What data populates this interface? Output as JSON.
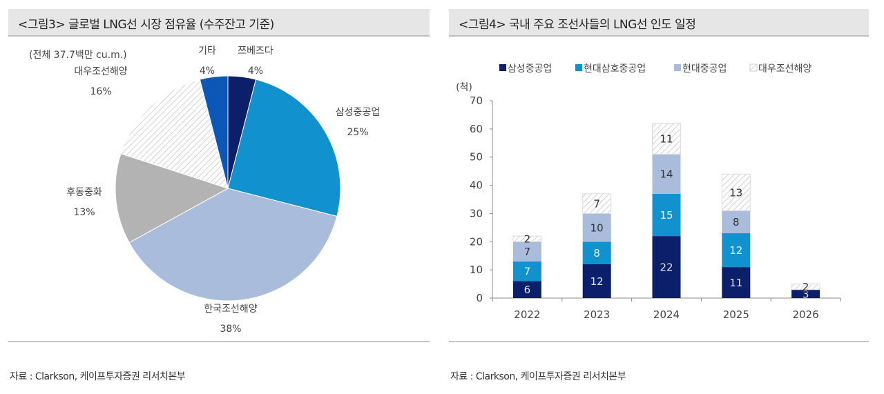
{
  "left_panel": {
    "title": "<그림3> 글로벌 LNG선 시장 점유율 (수주잔고 기준)",
    "source": "자료 : Clarkson, 케이프투자증권 리서치본부"
  },
  "right_panel": {
    "title": "<그림4> 국내 주요 조선사들의 LNG선 인도 일정",
    "source": "자료 : Clarkson, 케이프투자증권 리서치본부"
  },
  "chart_data": [
    {
      "type": "pie",
      "title": "글로벌 LNG선 시장 점유율 (수주잔고 기준)",
      "annotation": "(전체 37.7백만 cu.m.)",
      "unit": "%",
      "start_angle": "12 o'clock, clockwise",
      "slices": [
        {
          "label": "쯔베즈다",
          "value": 4,
          "display": "4%",
          "color": "#0b1f6b",
          "pattern": "solid"
        },
        {
          "label": "삼성중공업",
          "value": 25,
          "display": "25%",
          "color": "#1192cf",
          "pattern": "solid"
        },
        {
          "label": "한국조선해양",
          "value": 38,
          "display": "38%",
          "color": "#a9bcdc",
          "pattern": "solid"
        },
        {
          "label": "후동중화",
          "value": 13,
          "display": "13%",
          "color": "#b3b3b3",
          "pattern": "solid"
        },
        {
          "label": "대우조선해양",
          "value": 16,
          "display": "16%",
          "color": "#ffffff",
          "pattern": "hatched"
        },
        {
          "label": "기타",
          "value": 4,
          "display": "4%",
          "color": "#0a57b8",
          "pattern": "solid"
        }
      ]
    },
    {
      "type": "bar",
      "stacked": true,
      "title": "국내 주요 조선사들의 LNG선 인도 일정",
      "ylabel": "(척)",
      "xlabel": "",
      "categories": [
        "2022",
        "2023",
        "2024",
        "2025",
        "2026"
      ],
      "ylim": [
        0,
        70
      ],
      "yticks": [
        0,
        10,
        20,
        30,
        40,
        50,
        60,
        70
      ],
      "legend_position": "top",
      "grid": false,
      "series": [
        {
          "name": "삼성중공업",
          "values": [
            6,
            12,
            22,
            11,
            3
          ],
          "color": "#0b1f6b",
          "pattern": "solid",
          "label_color": "#dfe6f5"
        },
        {
          "name": "현대삼호중공업",
          "values": [
            7,
            8,
            15,
            12,
            0
          ],
          "color": "#1192cf",
          "pattern": "solid",
          "label_color": "#e8f4fb"
        },
        {
          "name": "현대중공업",
          "values": [
            7,
            10,
            14,
            8,
            0
          ],
          "color": "#a9bcdc",
          "pattern": "solid",
          "label_color": "#333333"
        },
        {
          "name": "대우조선해양",
          "values": [
            2,
            7,
            11,
            13,
            2
          ],
          "color": "#ffffff",
          "pattern": "hatched",
          "label_color": "#333333"
        }
      ]
    }
  ]
}
